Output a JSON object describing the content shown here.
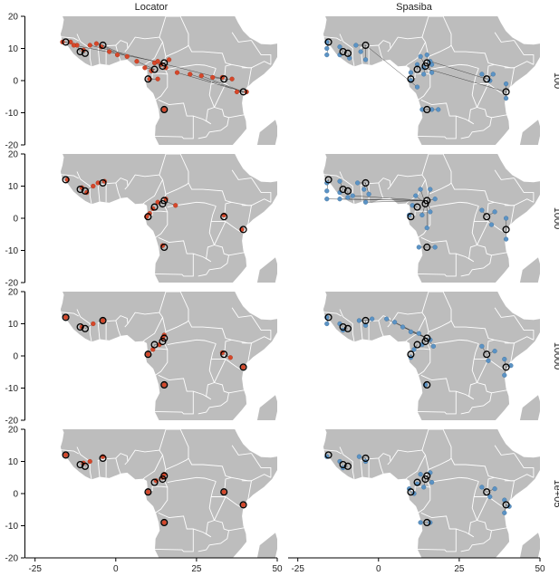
{
  "chart_data": {
    "type": "scatter",
    "description_free": true,
    "columns": [
      "Locator",
      "Spasiba"
    ],
    "rows": [
      "100",
      "1000",
      "10000",
      "1e+05"
    ],
    "x_ticks": [
      "-25",
      "0",
      "25",
      "50"
    ],
    "x_tick_values": [
      -25,
      0,
      25,
      50
    ],
    "y_ticks": [
      "20",
      "10",
      "0",
      "-10",
      "-20"
    ],
    "y_tick_values": [
      20,
      10,
      0,
      -10,
      -20
    ],
    "xlim": [
      -28,
      50
    ],
    "ylim": [
      -20,
      20
    ],
    "colors": {
      "land": "#bdbdbd",
      "border": "#ffffff",
      "locator": "#d6472a",
      "spasiba": "#5b93c5",
      "truth": "#000000",
      "line": "#333333"
    },
    "true_locations": [
      {
        "lon": -15.5,
        "lat": 12.0
      },
      {
        "lon": -11.0,
        "lat": 9.0
      },
      {
        "lon": -9.5,
        "lat": 8.5
      },
      {
        "lon": -4.0,
        "lat": 11.0
      },
      {
        "lon": 10.0,
        "lat": 0.5
      },
      {
        "lon": 12.0,
        "lat": 3.5
      },
      {
        "lon": 14.5,
        "lat": 4.5
      },
      {
        "lon": 15.0,
        "lat": 5.5
      },
      {
        "lon": 15.0,
        "lat": -9.0
      },
      {
        "lon": 33.5,
        "lat": 0.5
      },
      {
        "lon": 39.5,
        "lat": -3.5
      }
    ],
    "panels": [
      {
        "column": "Locator",
        "row": "100",
        "predictions": [
          {
            "lon": -16.5,
            "lat": 12.0,
            "t": 0
          },
          {
            "lon": -14.0,
            "lat": 12.0,
            "t": 0
          },
          {
            "lon": -12.0,
            "lat": 11.0,
            "t": 1
          },
          {
            "lon": -10.0,
            "lat": 9.5,
            "t": 2
          },
          {
            "lon": -6.0,
            "lat": 11.5,
            "t": 3
          },
          {
            "lon": -4.5,
            "lat": 10.5,
            "t": 3
          },
          {
            "lon": -2.0,
            "lat": 9.0,
            "t": 3
          },
          {
            "lon": 0.5,
            "lat": 8.0,
            "t": 3
          },
          {
            "lon": 3.5,
            "lat": 7.5,
            "t": 3
          },
          {
            "lon": 6.5,
            "lat": 6.0,
            "t": 5
          },
          {
            "lon": 9.0,
            "lat": 4.0,
            "t": 5
          },
          {
            "lon": 11.0,
            "lat": 3.0,
            "t": 5
          },
          {
            "lon": 12.0,
            "lat": 5.5,
            "t": 6
          },
          {
            "lon": 13.0,
            "lat": 6.0,
            "t": 6
          },
          {
            "lon": 14.0,
            "lat": 5.0,
            "t": 7
          },
          {
            "lon": 15.5,
            "lat": 4.0,
            "t": 7
          },
          {
            "lon": 16.5,
            "lat": 6.5,
            "t": 7
          },
          {
            "lon": 10.5,
            "lat": 0.5,
            "t": 4
          },
          {
            "lon": 13.0,
            "lat": 0.5,
            "t": 4
          },
          {
            "lon": 15.0,
            "lat": -9.0,
            "t": 8
          },
          {
            "lon": 19.0,
            "lat": 2.5,
            "t": 10
          },
          {
            "lon": 23.0,
            "lat": 2.0,
            "t": 10
          },
          {
            "lon": 26.5,
            "lat": 1.5,
            "t": 10
          },
          {
            "lon": 30.0,
            "lat": 1.0,
            "t": 9
          },
          {
            "lon": 33.0,
            "lat": 1.0,
            "t": 9
          },
          {
            "lon": 36.0,
            "lat": 0.5,
            "t": 9
          },
          {
            "lon": 37.5,
            "lat": -3.5,
            "t": 10
          },
          {
            "lon": 40.5,
            "lat": -3.5,
            "t": 10
          },
          {
            "lon": -13.0,
            "lat": 11.0,
            "t": 7
          },
          {
            "lon": -8.0,
            "lat": 11.0,
            "t": 9
          }
        ]
      },
      {
        "column": "Spasiba",
        "row": "100",
        "predictions": [
          {
            "lon": -16.0,
            "lat": 12.0,
            "t": 0
          },
          {
            "lon": -16.0,
            "lat": 10.0,
            "t": 0
          },
          {
            "lon": -16.0,
            "lat": 8.0,
            "t": 0
          },
          {
            "lon": -12.0,
            "lat": 10.5,
            "t": 1
          },
          {
            "lon": -12.0,
            "lat": 8.0,
            "t": 1
          },
          {
            "lon": -9.0,
            "lat": 7.0,
            "t": 2
          },
          {
            "lon": -7.0,
            "lat": 11.0,
            "t": 3
          },
          {
            "lon": -5.5,
            "lat": 9.0,
            "t": 3
          },
          {
            "lon": -4.0,
            "lat": 6.5,
            "t": 3
          },
          {
            "lon": 10.0,
            "lat": 0.0,
            "t": 4
          },
          {
            "lon": 10.0,
            "lat": 2.5,
            "t": 4
          },
          {
            "lon": 12.0,
            "lat": 5.0,
            "t": 5
          },
          {
            "lon": 13.0,
            "lat": 7.5,
            "t": 6
          },
          {
            "lon": 14.0,
            "lat": 2.0,
            "t": 6
          },
          {
            "lon": 15.0,
            "lat": 8.0,
            "t": 7
          },
          {
            "lon": 16.5,
            "lat": 5.0,
            "t": 7
          },
          {
            "lon": 16.5,
            "lat": 2.5,
            "t": 7
          },
          {
            "lon": 13.5,
            "lat": -9.0,
            "t": 8
          },
          {
            "lon": 16.5,
            "lat": -9.0,
            "t": 8
          },
          {
            "lon": 18.5,
            "lat": -9.0,
            "t": 8
          },
          {
            "lon": 32.0,
            "lat": 2.0,
            "t": 9
          },
          {
            "lon": 34.5,
            "lat": 0.0,
            "t": 9
          },
          {
            "lon": 35.5,
            "lat": 2.0,
            "t": 9
          },
          {
            "lon": 39.5,
            "lat": -1.0,
            "t": 10
          },
          {
            "lon": 39.5,
            "lat": -5.5,
            "t": 10
          },
          {
            "lon": 12.0,
            "lat": -2.0,
            "t": 3
          },
          {
            "lon": 14.0,
            "lat": 4.0,
            "t": 10
          },
          {
            "lon": 16.0,
            "lat": 6.0,
            "t": 9
          }
        ]
      },
      {
        "column": "Locator",
        "row": "1000",
        "predictions": [
          {
            "lon": -15.0,
            "lat": 12.0,
            "t": 0
          },
          {
            "lon": -10.5,
            "lat": 9.5,
            "t": 1
          },
          {
            "lon": -9.0,
            "lat": 8.0,
            "t": 2
          },
          {
            "lon": -7.0,
            "lat": 10.0,
            "t": 2
          },
          {
            "lon": -5.5,
            "lat": 11.0,
            "t": 3
          },
          {
            "lon": -3.5,
            "lat": 11.5,
            "t": 3
          },
          {
            "lon": 9.5,
            "lat": 0.5,
            "t": 4
          },
          {
            "lon": 10.5,
            "lat": 1.5,
            "t": 4
          },
          {
            "lon": 11.5,
            "lat": 3.0,
            "t": 5
          },
          {
            "lon": 13.0,
            "lat": 5.0,
            "t": 6
          },
          {
            "lon": 15.5,
            "lat": 6.0,
            "t": 7
          },
          {
            "lon": 18.5,
            "lat": 4.0,
            "t": 7
          },
          {
            "lon": 14.5,
            "lat": -8.5,
            "t": 8
          },
          {
            "lon": 33.5,
            "lat": 1.0,
            "t": 9
          },
          {
            "lon": 39.0,
            "lat": -3.5,
            "t": 10
          }
        ]
      },
      {
        "column": "Spasiba",
        "row": "1000",
        "predictions": [
          {
            "lon": -16.0,
            "lat": 11.0,
            "t": 0
          },
          {
            "lon": -16.0,
            "lat": 8.5,
            "t": 0
          },
          {
            "lon": -12.0,
            "lat": 11.5,
            "t": 1
          },
          {
            "lon": -12.0,
            "lat": 8.0,
            "t": 1
          },
          {
            "lon": -9.5,
            "lat": 6.5,
            "t": 2
          },
          {
            "lon": -6.5,
            "lat": 11.0,
            "t": 3
          },
          {
            "lon": -4.5,
            "lat": 9.0,
            "t": 3
          },
          {
            "lon": -3.0,
            "lat": 7.5,
            "t": 3
          },
          {
            "lon": -16.0,
            "lat": 6.0,
            "t": 7
          },
          {
            "lon": -12.0,
            "lat": 6.0,
            "t": 7
          },
          {
            "lon": -8.0,
            "lat": 7.0,
            "t": 7
          },
          {
            "lon": -4.0,
            "lat": 5.0,
            "t": 7
          },
          {
            "lon": 9.5,
            "lat": 1.0,
            "t": 4
          },
          {
            "lon": 10.5,
            "lat": 4.0,
            "t": 5
          },
          {
            "lon": 11.5,
            "lat": 7.0,
            "t": 6
          },
          {
            "lon": 13.0,
            "lat": 9.0,
            "t": 6
          },
          {
            "lon": 13.5,
            "lat": 1.0,
            "t": 6
          },
          {
            "lon": 16.0,
            "lat": 9.0,
            "t": 7
          },
          {
            "lon": 16.0,
            "lat": 2.0,
            "t": 7
          },
          {
            "lon": 17.5,
            "lat": 6.0,
            "t": 7
          },
          {
            "lon": 15.0,
            "lat": -3.0,
            "t": 7
          },
          {
            "lon": 12.5,
            "lat": -9.0,
            "t": 8
          },
          {
            "lon": 17.5,
            "lat": -9.0,
            "t": 8
          },
          {
            "lon": 32.0,
            "lat": 2.5,
            "t": 9
          },
          {
            "lon": 35.0,
            "lat": -2.0,
            "t": 9
          },
          {
            "lon": 36.0,
            "lat": 2.0,
            "t": 9
          },
          {
            "lon": 39.5,
            "lat": 0.0,
            "t": 10
          },
          {
            "lon": 39.5,
            "lat": -6.5,
            "t": 10
          }
        ]
      },
      {
        "column": "Locator",
        "row": "10000",
        "predictions": [
          {
            "lon": -15.5,
            "lat": 12.0,
            "t": 0
          },
          {
            "lon": -10.5,
            "lat": 9.0,
            "t": 1
          },
          {
            "lon": -7.0,
            "lat": 10.0,
            "t": 2
          },
          {
            "lon": -4.0,
            "lat": 11.0,
            "t": 3
          },
          {
            "lon": 10.0,
            "lat": 0.5,
            "t": 4
          },
          {
            "lon": 11.5,
            "lat": 2.0,
            "t": 5
          },
          {
            "lon": 13.5,
            "lat": 3.5,
            "t": 5
          },
          {
            "lon": 14.5,
            "lat": 5.5,
            "t": 6
          },
          {
            "lon": 15.0,
            "lat": 6.5,
            "t": 7
          },
          {
            "lon": 15.0,
            "lat": -9.0,
            "t": 8
          },
          {
            "lon": 33.0,
            "lat": 1.0,
            "t": 9
          },
          {
            "lon": 35.5,
            "lat": -0.5,
            "t": 9
          },
          {
            "lon": 39.5,
            "lat": -3.5,
            "t": 10
          }
        ]
      },
      {
        "column": "Spasiba",
        "row": "10000",
        "predictions": [
          {
            "lon": -16.0,
            "lat": 12.0,
            "t": 0
          },
          {
            "lon": -16.0,
            "lat": 10.0,
            "t": 0
          },
          {
            "lon": -12.0,
            "lat": 10.0,
            "t": 1
          },
          {
            "lon": -11.0,
            "lat": 8.0,
            "t": 2
          },
          {
            "lon": -6.0,
            "lat": 11.0,
            "t": 3
          },
          {
            "lon": -4.0,
            "lat": 9.5,
            "t": 3
          },
          {
            "lon": -2.0,
            "lat": 11.5,
            "t": 3
          },
          {
            "lon": 2.5,
            "lat": 11.5,
            "t": 7
          },
          {
            "lon": 5.0,
            "lat": 10.5,
            "t": 7
          },
          {
            "lon": 7.5,
            "lat": 9.0,
            "t": 7
          },
          {
            "lon": 10.0,
            "lat": 7.5,
            "t": 7
          },
          {
            "lon": 12.5,
            "lat": 7.0,
            "t": 7
          },
          {
            "lon": 11.0,
            "lat": 2.0,
            "t": 5
          },
          {
            "lon": 13.5,
            "lat": 3.5,
            "t": 6
          },
          {
            "lon": 16.0,
            "lat": 5.0,
            "t": 7
          },
          {
            "lon": 17.0,
            "lat": 3.0,
            "t": 7
          },
          {
            "lon": 10.0,
            "lat": -0.5,
            "t": 4
          },
          {
            "lon": 14.5,
            "lat": -9.0,
            "t": 8
          },
          {
            "lon": 32.0,
            "lat": 3.0,
            "t": 9
          },
          {
            "lon": 34.0,
            "lat": -1.5,
            "t": 9
          },
          {
            "lon": 36.0,
            "lat": 1.5,
            "t": 9
          },
          {
            "lon": 39.0,
            "lat": -1.0,
            "t": 10
          },
          {
            "lon": 41.0,
            "lat": -3.0,
            "t": 10
          },
          {
            "lon": 39.0,
            "lat": -6.0,
            "t": 10
          }
        ]
      },
      {
        "column": "Locator",
        "row": "1e+05",
        "predictions": [
          {
            "lon": -15.5,
            "lat": 12.0,
            "t": 0
          },
          {
            "lon": -10.0,
            "lat": 9.5,
            "t": 1
          },
          {
            "lon": -8.0,
            "lat": 10.0,
            "t": 2
          },
          {
            "lon": -4.0,
            "lat": 11.5,
            "t": 3
          },
          {
            "lon": 10.0,
            "lat": 0.5,
            "t": 4
          },
          {
            "lon": 12.5,
            "lat": 4.0,
            "t": 5
          },
          {
            "lon": 14.5,
            "lat": 5.0,
            "t": 6
          },
          {
            "lon": 15.0,
            "lat": 6.0,
            "t": 7
          },
          {
            "lon": 15.0,
            "lat": -9.0,
            "t": 8
          },
          {
            "lon": 33.5,
            "lat": 0.5,
            "t": 9
          },
          {
            "lon": 39.5,
            "lat": -3.5,
            "t": 10
          }
        ]
      },
      {
        "column": "Spasiba",
        "row": "1e+05",
        "predictions": [
          {
            "lon": -16.0,
            "lat": 11.5,
            "t": 0
          },
          {
            "lon": -12.0,
            "lat": 10.0,
            "t": 1
          },
          {
            "lon": -11.0,
            "lat": 8.0,
            "t": 2
          },
          {
            "lon": -6.0,
            "lat": 11.5,
            "t": 3
          },
          {
            "lon": -4.0,
            "lat": 10.0,
            "t": 3
          },
          {
            "lon": 9.5,
            "lat": 1.5,
            "t": 4
          },
          {
            "lon": 11.0,
            "lat": 0.0,
            "t": 4
          },
          {
            "lon": 12.0,
            "lat": 3.0,
            "t": 5
          },
          {
            "lon": 13.0,
            "lat": 6.0,
            "t": 6
          },
          {
            "lon": 14.0,
            "lat": 2.0,
            "t": 6
          },
          {
            "lon": 16.0,
            "lat": 6.5,
            "t": 7
          },
          {
            "lon": 16.5,
            "lat": 3.5,
            "t": 7
          },
          {
            "lon": 13.0,
            "lat": -9.0,
            "t": 8
          },
          {
            "lon": 16.0,
            "lat": -9.0,
            "t": 8
          },
          {
            "lon": 32.0,
            "lat": 2.0,
            "t": 9
          },
          {
            "lon": 34.5,
            "lat": -1.0,
            "t": 9
          },
          {
            "lon": 36.0,
            "lat": 1.5,
            "t": 9
          },
          {
            "lon": 39.0,
            "lat": -2.0,
            "t": 10
          },
          {
            "lon": 40.5,
            "lat": -4.0,
            "t": 10
          },
          {
            "lon": 39.0,
            "lat": -6.0,
            "t": 10
          }
        ]
      }
    ]
  }
}
